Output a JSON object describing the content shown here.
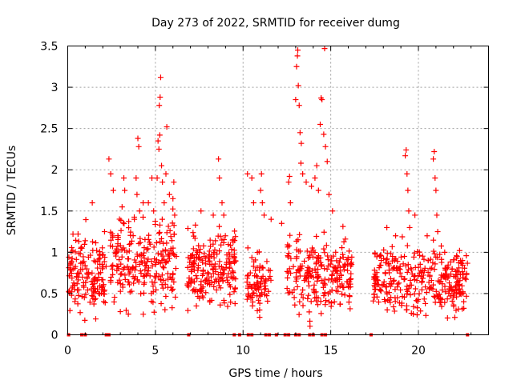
{
  "chart_data": {
    "type": "scatter",
    "title": "Day 273 of 2022, SRMTID for receiver dumg",
    "xlabel": "GPS time / hours",
    "ylabel": "SRMTID / TECUs",
    "xlim": [
      0,
      24
    ],
    "ylim": [
      0,
      3.5
    ],
    "x_ticks": [
      0,
      5,
      10,
      15,
      20
    ],
    "y_ticks": [
      0,
      0.5,
      1,
      1.5,
      2,
      2.5,
      3,
      3.5
    ],
    "x_tick_labels": [
      "0",
      "5",
      "10",
      "15",
      "20"
    ],
    "y_tick_labels": [
      "0",
      "0.5",
      "1",
      "1.5",
      "2",
      "2.5",
      "3",
      "3.5"
    ],
    "grid": true,
    "marker": "+",
    "color": "#ff0000",
    "series": [
      {
        "name": "SRMTID",
        "clusters": [
          {
            "x_range": [
              0.0,
              2.2
            ],
            "y_range": [
              0.05,
              1.25
            ],
            "count": 150
          },
          {
            "x_range": [
              2.4,
              6.2
            ],
            "y_range": [
              0.1,
              1.5
            ],
            "count": 230
          },
          {
            "x_range": [
              6.8,
              9.6
            ],
            "y_range": [
              0.2,
              1.3
            ],
            "count": 210
          },
          {
            "x_range": [
              10.2,
              11.6
            ],
            "y_range": [
              0.1,
              1.0
            ],
            "count": 80
          },
          {
            "x_range": [
              12.5,
              16.2
            ],
            "y_range": [
              0.05,
              1.2
            ],
            "count": 230
          },
          {
            "x_range": [
              17.4,
              22.8
            ],
            "y_range": [
              0.1,
              1.1
            ],
            "count": 330
          }
        ],
        "spikes": [
          {
            "x": 0.3,
            "y": 1.22
          },
          {
            "x": 1.4,
            "y": 1.6
          },
          {
            "x": 2.1,
            "y": 1.25
          },
          {
            "x": 2.35,
            "y": 2.13
          },
          {
            "x": 2.45,
            "y": 1.95
          },
          {
            "x": 2.6,
            "y": 1.75
          },
          {
            "x": 3.1,
            "y": 1.55
          },
          {
            "x": 3.2,
            "y": 1.9
          },
          {
            "x": 3.25,
            "y": 1.75
          },
          {
            "x": 3.8,
            "y": 1.4
          },
          {
            "x": 3.9,
            "y": 1.9
          },
          {
            "x": 3.95,
            "y": 1.7
          },
          {
            "x": 4.0,
            "y": 2.38
          },
          {
            "x": 4.05,
            "y": 2.28
          },
          {
            "x": 4.1,
            "y": 1.5
          },
          {
            "x": 4.3,
            "y": 1.6
          },
          {
            "x": 4.6,
            "y": 1.6
          },
          {
            "x": 4.8,
            "y": 1.9
          },
          {
            "x": 4.9,
            "y": 1.5
          },
          {
            "x": 5.1,
            "y": 1.9
          },
          {
            "x": 5.15,
            "y": 2.35
          },
          {
            "x": 5.2,
            "y": 2.25
          },
          {
            "x": 5.22,
            "y": 2.78
          },
          {
            "x": 5.25,
            "y": 2.42
          },
          {
            "x": 5.27,
            "y": 2.88
          },
          {
            "x": 5.3,
            "y": 3.12
          },
          {
            "x": 5.35,
            "y": 2.05
          },
          {
            "x": 5.4,
            "y": 1.85
          },
          {
            "x": 5.5,
            "y": 1.6
          },
          {
            "x": 5.6,
            "y": 1.95
          },
          {
            "x": 5.65,
            "y": 2.52
          },
          {
            "x": 5.8,
            "y": 1.7
          },
          {
            "x": 6.0,
            "y": 1.65
          },
          {
            "x": 6.05,
            "y": 1.85
          },
          {
            "x": 6.1,
            "y": 1.45
          },
          {
            "x": 7.6,
            "y": 1.5
          },
          {
            "x": 8.3,
            "y": 1.45
          },
          {
            "x": 8.6,
            "y": 2.13
          },
          {
            "x": 8.65,
            "y": 1.9
          },
          {
            "x": 8.8,
            "y": 1.6
          },
          {
            "x": 8.9,
            "y": 1.45
          },
          {
            "x": 10.25,
            "y": 1.95
          },
          {
            "x": 10.5,
            "y": 1.9
          },
          {
            "x": 10.6,
            "y": 1.6
          },
          {
            "x": 11.0,
            "y": 1.75
          },
          {
            "x": 11.05,
            "y": 1.95
          },
          {
            "x": 11.1,
            "y": 1.6
          },
          {
            "x": 11.2,
            "y": 1.45
          },
          {
            "x": 11.6,
            "y": 1.4
          },
          {
            "x": 12.2,
            "y": 1.35
          },
          {
            "x": 12.6,
            "y": 1.85
          },
          {
            "x": 12.65,
            "y": 1.92
          },
          {
            "x": 12.7,
            "y": 1.6
          },
          {
            "x": 13.0,
            "y": 2.85
          },
          {
            "x": 13.05,
            "y": 3.25
          },
          {
            "x": 13.1,
            "y": 3.38
          },
          {
            "x": 13.12,
            "y": 3.45
          },
          {
            "x": 13.15,
            "y": 3.02
          },
          {
            "x": 13.2,
            "y": 2.78
          },
          {
            "x": 13.25,
            "y": 2.45
          },
          {
            "x": 13.3,
            "y": 2.08
          },
          {
            "x": 13.32,
            "y": 2.32
          },
          {
            "x": 13.4,
            "y": 1.95
          },
          {
            "x": 13.6,
            "y": 1.85
          },
          {
            "x": 13.9,
            "y": 1.8
          },
          {
            "x": 14.1,
            "y": 1.9
          },
          {
            "x": 14.2,
            "y": 2.05
          },
          {
            "x": 14.3,
            "y": 1.75
          },
          {
            "x": 14.4,
            "y": 2.55
          },
          {
            "x": 14.45,
            "y": 2.87
          },
          {
            "x": 14.5,
            "y": 2.85
          },
          {
            "x": 14.6,
            "y": 2.43
          },
          {
            "x": 14.65,
            "y": 3.47
          },
          {
            "x": 14.7,
            "y": 2.28
          },
          {
            "x": 14.8,
            "y": 2.1
          },
          {
            "x": 14.9,
            "y": 1.7
          },
          {
            "x": 15.1,
            "y": 1.5
          },
          {
            "x": 18.2,
            "y": 1.3
          },
          {
            "x": 18.7,
            "y": 1.2
          },
          {
            "x": 19.25,
            "y": 2.17
          },
          {
            "x": 19.3,
            "y": 2.24
          },
          {
            "x": 19.35,
            "y": 1.95
          },
          {
            "x": 19.4,
            "y": 1.75
          },
          {
            "x": 19.45,
            "y": 1.5
          },
          {
            "x": 19.5,
            "y": 1.3
          },
          {
            "x": 19.8,
            "y": 1.45
          },
          {
            "x": 20.5,
            "y": 1.2
          },
          {
            "x": 20.85,
            "y": 2.13
          },
          {
            "x": 20.9,
            "y": 2.22
          },
          {
            "x": 20.95,
            "y": 1.9
          },
          {
            "x": 21.0,
            "y": 1.75
          },
          {
            "x": 21.05,
            "y": 1.45
          },
          {
            "x": 21.1,
            "y": 1.25
          },
          {
            "x": 21.5,
            "y": 1.0
          },
          {
            "x": 22.2,
            "y": 0.95
          }
        ],
        "zero_points": [
          0.05,
          0.8,
          1.0,
          2.2,
          2.35,
          6.9,
          9.5,
          9.8,
          10.3,
          10.5,
          11.3,
          11.5,
          11.9,
          12.4,
          12.6,
          13.0,
          13.2,
          13.8,
          14.0,
          14.5,
          14.7,
          17.3,
          22.8
        ]
      }
    ]
  }
}
